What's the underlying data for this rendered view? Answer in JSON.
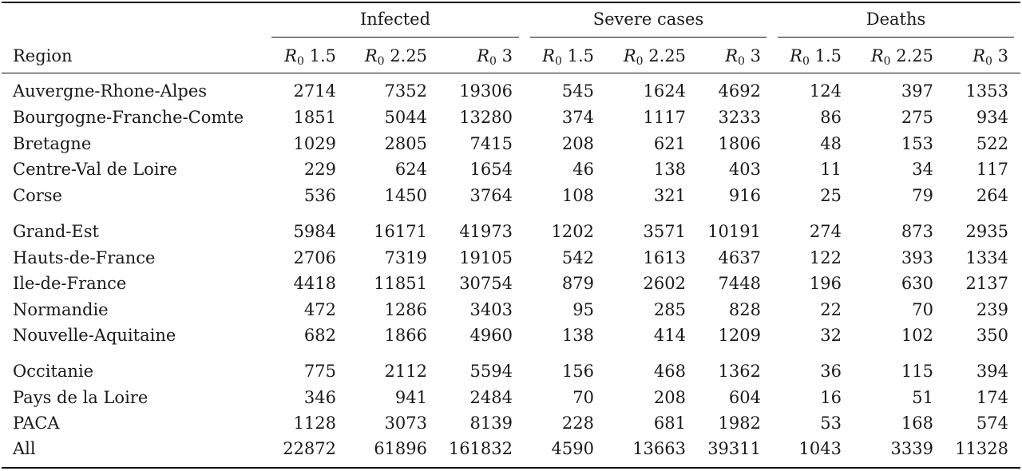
{
  "header": {
    "region_label": "Region",
    "groups": [
      {
        "label": "Infected",
        "subcols": [
          {
            "sym": "R",
            "sub": "0",
            "val": "1.5"
          },
          {
            "sym": "R",
            "sub": "0",
            "val": "2.25"
          },
          {
            "sym": "R",
            "sub": "0",
            "val": "3"
          }
        ]
      },
      {
        "label": "Severe cases",
        "subcols": [
          {
            "sym": "R",
            "sub": "0",
            "val": "1.5"
          },
          {
            "sym": "R",
            "sub": "0",
            "val": "2.25"
          },
          {
            "sym": "R",
            "sub": "0",
            "val": "3"
          }
        ]
      },
      {
        "label": "Deaths",
        "subcols": [
          {
            "sym": "R",
            "sub": "0",
            "val": "1.5"
          },
          {
            "sym": "R",
            "sub": "0",
            "val": "2.25"
          },
          {
            "sym": "R",
            "sub": "0",
            "val": "3"
          }
        ]
      }
    ]
  },
  "rows": [
    {
      "region": "Auvergne-Rhone-Alpes",
      "values": [
        "2714",
        "7352",
        "19306",
        "545",
        "1624",
        "4692",
        "124",
        "397",
        "1353"
      ]
    },
    {
      "region": "Bourgogne-Franche-Comte",
      "values": [
        "1851",
        "5044",
        "13280",
        "374",
        "1117",
        "3233",
        "86",
        "275",
        "934"
      ]
    },
    {
      "region": "Bretagne",
      "values": [
        "1029",
        "2805",
        "7415",
        "208",
        "621",
        "1806",
        "48",
        "153",
        "522"
      ]
    },
    {
      "region": "Centre-Val de Loire",
      "values": [
        "229",
        "624",
        "1654",
        "46",
        "138",
        "403",
        "11",
        "34",
        "117"
      ]
    },
    {
      "region": "Corse",
      "values": [
        "536",
        "1450",
        "3764",
        "108",
        "321",
        "916",
        "25",
        "79",
        "264"
      ]
    },
    {
      "region": "Grand-Est",
      "values": [
        "5984",
        "16171",
        "41973",
        "1202",
        "3571",
        "10191",
        "274",
        "873",
        "2935"
      ]
    },
    {
      "region": "Hauts-de-France",
      "values": [
        "2706",
        "7319",
        "19105",
        "542",
        "1613",
        "4637",
        "122",
        "393",
        "1334"
      ]
    },
    {
      "region": "Ile-de-France",
      "values": [
        "4418",
        "11851",
        "30754",
        "879",
        "2602",
        "7448",
        "196",
        "630",
        "2137"
      ]
    },
    {
      "region": "Normandie",
      "values": [
        "472",
        "1286",
        "3403",
        "95",
        "285",
        "828",
        "22",
        "70",
        "239"
      ]
    },
    {
      "region": "Nouvelle-Aquitaine",
      "values": [
        "682",
        "1866",
        "4960",
        "138",
        "414",
        "1209",
        "32",
        "102",
        "350"
      ]
    },
    {
      "region": "Occitanie",
      "values": [
        "775",
        "2112",
        "5594",
        "156",
        "468",
        "1362",
        "36",
        "115",
        "394"
      ]
    },
    {
      "region": "Pays de la Loire",
      "values": [
        "346",
        "941",
        "2484",
        "70",
        "208",
        "604",
        "16",
        "51",
        "174"
      ]
    },
    {
      "region": "PACA",
      "values": [
        "1128",
        "3073",
        "8139",
        "228",
        "681",
        "1982",
        "53",
        "168",
        "574"
      ]
    },
    {
      "region": "All",
      "values": [
        "22872",
        "61896",
        "161832",
        "4590",
        "13663",
        "39311",
        "1043",
        "3339",
        "11328"
      ]
    }
  ]
}
